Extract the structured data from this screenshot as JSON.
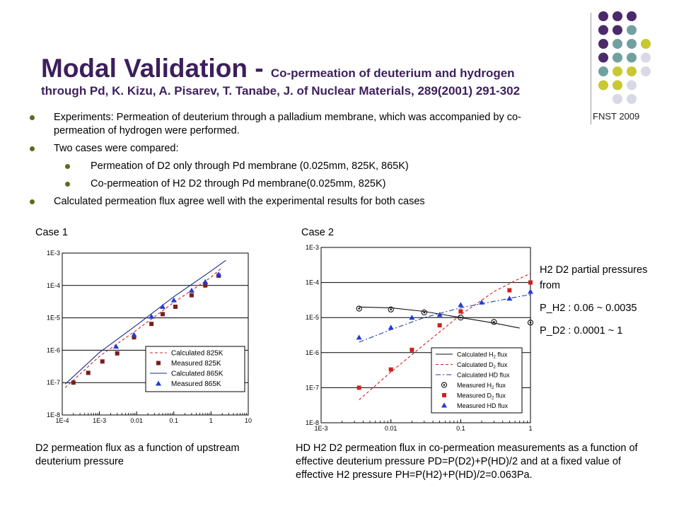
{
  "header": {
    "title_main": "Modal Validation - ",
    "title_sub": "Co-permeation of deuterium and hydrogen",
    "title_ref": "through Pd, K. Kizu, A. Pisarev, T. Tanabe, J. of Nuclear Materials, 289(2001) 291-302",
    "corner_label": "FNST 2009",
    "dot_colors": [
      "#4b2a6b",
      "#72a0a0",
      "#c8c832",
      "#d8d8e6"
    ]
  },
  "bullets": [
    {
      "level": 1,
      "text": "Experiments: Permeation of deuterium through a palladium membrane, which was accompanied by co-permeation of hydrogen were performed."
    },
    {
      "level": 1,
      "text": "Two cases were compared:"
    },
    {
      "level": 2,
      "text": "Permeation of D2 only through Pd membrane (0.025mm, 825K, 865K)"
    },
    {
      "level": 2,
      "text": "Co-permeation of H2 D2 through Pd membrane(0.025mm, 825K)"
    },
    {
      "level": 1,
      "text": "Calculated permeation flux agree well with the experimental results for both cases"
    }
  ],
  "case1": {
    "label": "Case 1",
    "caption": "D2 permeation flux as a function of upstream deuterium pressure"
  },
  "case2": {
    "label": "Case 2",
    "caption": "HD H2 D2 permeation flux in co-permeation measurements as a function of effective deuterium pressure PD=P(D2)+P(HD)/2 and at a fixed value of effective H2 pressure PH=P(H2)+P(HD)/2=0.063Pa."
  },
  "side_note": {
    "heading": "H2 D2 partial pressures from",
    "line1": "P_H2 : 0.06 ~ 0.0035",
    "line2": "P_D2 : 0.0001 ~ 1"
  },
  "chart_data": [
    {
      "type": "line",
      "xscale": "log",
      "yscale": "log",
      "xlim": [
        0.0001,
        10
      ],
      "ylim": [
        1e-08,
        0.001
      ],
      "x_ticks": [
        "1E-4",
        "1E-3",
        "0.01",
        "0.1",
        "1",
        "10"
      ],
      "y_ticks": [
        "1E-3",
        "1E-4",
        "1E-5",
        "1E-6",
        "1E-7",
        "1E-8"
      ],
      "legend_position": "bottom-right",
      "series": [
        {
          "name": "Calculated 825K",
          "kind": "line",
          "dash": "dashed",
          "color": "#c0282c",
          "points": [
            [
              0.00012,
              7e-08
            ],
            [
              0.001,
              6.5e-07
            ],
            [
              0.01,
              4.2e-06
            ],
            [
              0.1,
              3e-05
            ],
            [
              1,
              0.00018
            ],
            [
              2,
              0.00036
            ]
          ]
        },
        {
          "name": "Measured 825K",
          "kind": "marker",
          "marker": "square",
          "color": "#7a1e1e",
          "points": [
            [
              0.0002,
              1e-07
            ],
            [
              0.0005,
              2e-07
            ],
            [
              0.0012,
              4.5e-07
            ],
            [
              0.003,
              8e-07
            ],
            [
              0.0085,
              2.5e-06
            ],
            [
              0.025,
              6.5e-06
            ],
            [
              0.05,
              1.3e-05
            ],
            [
              0.11,
              2.2e-05
            ],
            [
              0.3,
              5e-05
            ],
            [
              0.7,
              0.0001
            ],
            [
              1.6,
              0.0002
            ]
          ]
        },
        {
          "name": "Calculated 865K",
          "kind": "line",
          "dash": "solid",
          "color": "#1a2a8a",
          "points": [
            [
              0.00012,
              9e-08
            ],
            [
              0.001,
              8.5e-07
            ],
            [
              0.01,
              6e-06
            ],
            [
              0.1,
              4.5e-05
            ],
            [
              1,
              0.00028
            ],
            [
              2.5,
              0.0006
            ]
          ]
        },
        {
          "name": "Measured 865K",
          "kind": "marker",
          "marker": "triangle",
          "color": "#1e3cd6",
          "points": [
            [
              0.0028,
              1.3e-06
            ],
            [
              0.0085,
              3e-06
            ],
            [
              0.025,
              1.1e-05
            ],
            [
              0.05,
              2.2e-05
            ],
            [
              0.1,
              3.5e-05
            ],
            [
              0.3,
              7e-05
            ],
            [
              0.7,
              0.00013
            ],
            [
              1.6,
              0.00022
            ]
          ]
        }
      ]
    },
    {
      "type": "line",
      "xscale": "log",
      "yscale": "log",
      "xlim": [
        0.001,
        1
      ],
      "ylim": [
        1e-08,
        0.001
      ],
      "x_ticks": [
        "1E-3",
        "0.01",
        "0.1",
        "1"
      ],
      "y_ticks": [
        "1E-3",
        "1E-4",
        "1E-5",
        "1E-6",
        "1E-7",
        "1E-8"
      ],
      "legend_position": "bottom-right",
      "series": [
        {
          "name": "Calculated H",
          "sub": "2",
          "tail": " flux",
          "kind": "line",
          "dash": "solid",
          "color": "#111111",
          "points": [
            [
              0.0035,
              2e-05
            ],
            [
              0.01,
              1.9e-05
            ],
            [
              0.03,
              1.5e-05
            ],
            [
              0.1,
              1e-05
            ],
            [
              0.3,
              7e-06
            ],
            [
              0.7,
              5e-06
            ]
          ]
        },
        {
          "name": "Calculated D",
          "sub": "2",
          "tail": " flux",
          "kind": "line",
          "dash": "dashed",
          "color": "#d02020",
          "points": [
            [
              0.0035,
              4.5e-08
            ],
            [
              0.01,
              2.8e-07
            ],
            [
              0.03,
              1.7e-06
            ],
            [
              0.1,
              1.2e-05
            ],
            [
              0.3,
              5.5e-05
            ],
            [
              0.7,
              0.00013
            ],
            [
              1,
              0.00018
            ]
          ]
        },
        {
          "name": "Calculated HD",
          "sub": "",
          "tail": " flux",
          "kind": "line",
          "dash": "dashdot",
          "color": "#1e3cb0",
          "points": [
            [
              0.0035,
              2e-06
            ],
            [
              0.01,
              4.5e-06
            ],
            [
              0.03,
              1e-05
            ],
            [
              0.1,
              1.9e-05
            ],
            [
              0.3,
              2.9e-05
            ],
            [
              0.7,
              4e-05
            ],
            [
              1,
              4.5e-05
            ]
          ]
        },
        {
          "name": "Measured H",
          "sub": "2",
          "tail": " flux",
          "kind": "marker",
          "marker": "circle",
          "color": "#111111",
          "points": [
            [
              0.0035,
              1.8e-05
            ],
            [
              0.01,
              1.7e-05
            ],
            [
              0.03,
              1.4e-05
            ],
            [
              0.1,
              1e-05
            ],
            [
              0.3,
              7.5e-06
            ],
            [
              1,
              7.2e-06
            ]
          ]
        },
        {
          "name": "Measured D",
          "sub": "2",
          "tail": " flux",
          "kind": "marker",
          "marker": "square",
          "color": "#d02020",
          "points": [
            [
              0.0035,
              1e-07
            ],
            [
              0.01,
              3.3e-07
            ],
            [
              0.02,
              1.2e-06
            ],
            [
              0.05,
              6e-06
            ],
            [
              0.1,
              1.5e-05
            ],
            [
              0.5,
              6e-05
            ],
            [
              1,
              0.0001
            ]
          ]
        },
        {
          "name": "Measured HD",
          "sub": "",
          "tail": " flux",
          "kind": "marker",
          "marker": "triangle",
          "color": "#1e3cd6",
          "points": [
            [
              0.0035,
              2.7e-06
            ],
            [
              0.01,
              5.2e-06
            ],
            [
              0.02,
              1e-05
            ],
            [
              0.05,
              1.2e-05
            ],
            [
              0.1,
              2.3e-05
            ],
            [
              0.2,
              2.7e-05
            ],
            [
              0.5,
              3.5e-05
            ],
            [
              1,
              5.5e-05
            ]
          ]
        }
      ]
    }
  ]
}
